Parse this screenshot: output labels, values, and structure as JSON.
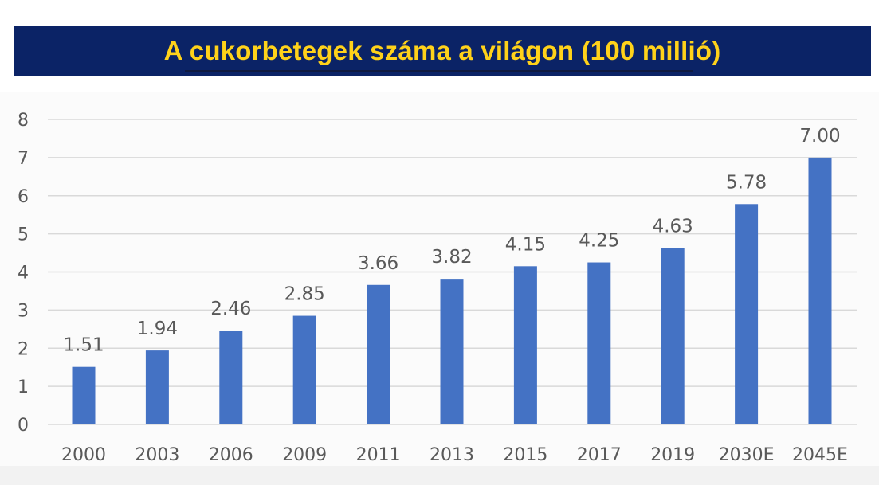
{
  "title": "A cukorbetegek száma a világon (100 millió)",
  "colors": {
    "banner_background": "#0b2366",
    "title_text": "#ffd21a",
    "bar": "#4472c4",
    "grid": "#d9d9d9",
    "label_text": "#595959"
  },
  "chart_data": {
    "type": "bar",
    "title": "A cukorbetegek száma a világon (100 millió)",
    "xlabel": "",
    "ylabel": "",
    "categories": [
      "2000",
      "2003",
      "2006",
      "2009",
      "2011",
      "2013",
      "2015",
      "2017",
      "2019",
      "2030E",
      "2045E"
    ],
    "values": [
      1.51,
      1.94,
      2.46,
      2.85,
      3.66,
      3.82,
      4.15,
      4.25,
      4.63,
      5.78,
      7.0
    ],
    "value_labels": [
      "1.51",
      "1.94",
      "2.46",
      "2.85",
      "3.66",
      "3.82",
      "4.15",
      "4.25",
      "4.63",
      "5.78",
      "7.00"
    ],
    "ylim": [
      0,
      8
    ],
    "yticks": [
      "0",
      "1",
      "2",
      "3",
      "4",
      "5",
      "6",
      "7",
      "8"
    ],
    "grid": true,
    "legend": "none"
  }
}
